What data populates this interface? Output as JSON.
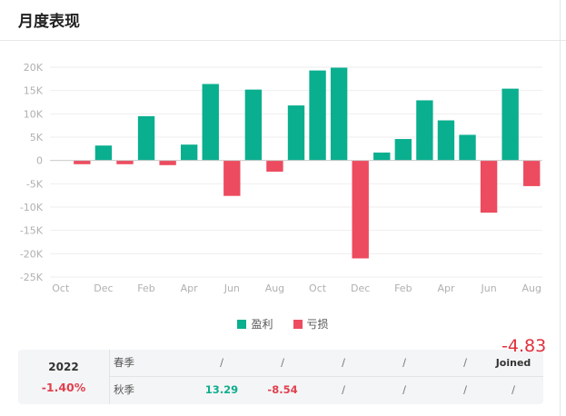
{
  "header": {
    "title": "月度表现"
  },
  "chart_data": {
    "type": "bar",
    "categories": [
      "Oct",
      "Nov",
      "Dec",
      "Jan",
      "Feb",
      "Mar",
      "Apr",
      "May",
      "Jun",
      "Jul",
      "Aug",
      "Sep",
      "Oct",
      "Nov",
      "Dec",
      "Jan",
      "Feb",
      "Mar",
      "Apr",
      "May",
      "Jun",
      "Jul",
      "Aug"
    ],
    "x_tick_labels": [
      "Oct",
      "Dec",
      "Feb",
      "Apr",
      "Jun",
      "Aug",
      "Oct",
      "Dec",
      "Feb",
      "Apr",
      "Jun",
      "Aug"
    ],
    "x_tick_indices": [
      0,
      2,
      4,
      6,
      8,
      10,
      12,
      14,
      16,
      18,
      20,
      22
    ],
    "series": [
      {
        "name": "盈利",
        "color": "#0aaf8f",
        "values": [
          0,
          0,
          3200,
          0,
          9500,
          0,
          3400,
          16400,
          0,
          15200,
          0,
          11800,
          19300,
          19900,
          0,
          1700,
          4600,
          12900,
          8600,
          5500,
          0,
          15400,
          0
        ]
      },
      {
        "name": "亏损",
        "color": "#ed4b5f",
        "values": [
          0,
          -800,
          0,
          -800,
          0,
          -1000,
          0,
          0,
          -7600,
          0,
          -2400,
          0,
          0,
          0,
          -21000,
          0,
          0,
          0,
          0,
          0,
          -11200,
          0,
          -5500
        ]
      }
    ],
    "y_ticks": [
      20000,
      15000,
      10000,
      5000,
      0,
      -5000,
      -10000,
      -15000,
      -20000,
      -25000
    ],
    "y_tick_labels": [
      "20K",
      "15K",
      "10K",
      "5K",
      "0",
      "-5K",
      "-10K",
      "-15K",
      "-20K",
      "-25K"
    ],
    "ylim": [
      -25000,
      20000
    ],
    "legend_position": "bottom-center",
    "grid": true
  },
  "legend": {
    "profit": "盈利",
    "loss": "亏损"
  },
  "table": {
    "year": "2022",
    "year_return": "-1.40%",
    "rows": [
      {
        "season": "春季",
        "values": [
          "/",
          "/",
          "/",
          "/",
          "/"
        ],
        "last": "Joined"
      },
      {
        "season": "秋季",
        "values": [
          "13.29",
          "-8.54",
          "/",
          "/",
          "/"
        ],
        "last": "/"
      }
    ],
    "floating_value": "-4.83"
  }
}
